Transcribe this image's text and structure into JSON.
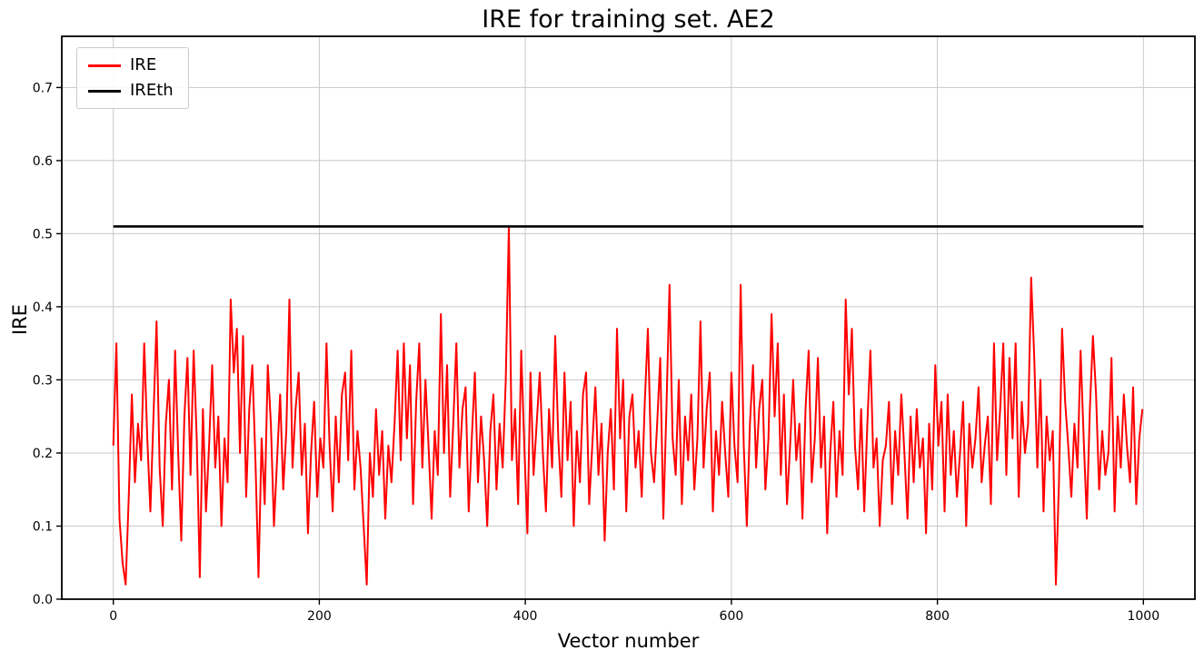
{
  "chart_data": {
    "type": "line",
    "title": "IRE for training set. AE2",
    "xlabel": "Vector number",
    "ylabel": "IRE",
    "xlim": [
      -50,
      1050
    ],
    "ylim": [
      0,
      0.77
    ],
    "x_ticks": [
      0,
      200,
      400,
      600,
      800,
      1000
    ],
    "y_ticks": [
      0.0,
      0.1,
      0.2,
      0.3,
      0.4,
      0.5,
      0.6,
      0.7
    ],
    "grid": true,
    "grid_color": "#c8c8c8",
    "legend_position": "upper left",
    "series": [
      {
        "name": "IRE",
        "color": "#ff0000",
        "kind": "line",
        "x_start": 0,
        "x_step": 3,
        "values": [
          0.21,
          0.35,
          0.11,
          0.05,
          0.02,
          0.14,
          0.28,
          0.16,
          0.24,
          0.19,
          0.35,
          0.22,
          0.12,
          0.25,
          0.38,
          0.18,
          0.1,
          0.24,
          0.3,
          0.15,
          0.34,
          0.2,
          0.08,
          0.25,
          0.33,
          0.17,
          0.34,
          0.22,
          0.03,
          0.26,
          0.12,
          0.21,
          0.32,
          0.18,
          0.25,
          0.1,
          0.22,
          0.16,
          0.41,
          0.31,
          0.37,
          0.2,
          0.36,
          0.14,
          0.26,
          0.32,
          0.19,
          0.03,
          0.22,
          0.13,
          0.32,
          0.24,
          0.1,
          0.19,
          0.28,
          0.15,
          0.23,
          0.41,
          0.18,
          0.26,
          0.31,
          0.17,
          0.24,
          0.09,
          0.2,
          0.27,
          0.14,
          0.22,
          0.18,
          0.35,
          0.21,
          0.12,
          0.25,
          0.16,
          0.28,
          0.31,
          0.19,
          0.34,
          0.15,
          0.23,
          0.18,
          0.1,
          0.02,
          0.2,
          0.14,
          0.26,
          0.17,
          0.23,
          0.11,
          0.21,
          0.16,
          0.24,
          0.34,
          0.19,
          0.35,
          0.22,
          0.32,
          0.13,
          0.27,
          0.35,
          0.18,
          0.3,
          0.21,
          0.11,
          0.23,
          0.17,
          0.39,
          0.2,
          0.32,
          0.14,
          0.24,
          0.35,
          0.18,
          0.26,
          0.29,
          0.12,
          0.22,
          0.31,
          0.16,
          0.25,
          0.19,
          0.1,
          0.23,
          0.28,
          0.15,
          0.24,
          0.18,
          0.3,
          0.51,
          0.19,
          0.26,
          0.13,
          0.34,
          0.21,
          0.09,
          0.31,
          0.17,
          0.24,
          0.31,
          0.2,
          0.12,
          0.26,
          0.18,
          0.36,
          0.22,
          0.14,
          0.31,
          0.19,
          0.27,
          0.1,
          0.23,
          0.16,
          0.28,
          0.31,
          0.13,
          0.21,
          0.29,
          0.17,
          0.24,
          0.08,
          0.2,
          0.26,
          0.15,
          0.37,
          0.22,
          0.3,
          0.12,
          0.25,
          0.28,
          0.18,
          0.23,
          0.14,
          0.27,
          0.37,
          0.2,
          0.16,
          0.24,
          0.33,
          0.11,
          0.26,
          0.43,
          0.22,
          0.17,
          0.3,
          0.13,
          0.25,
          0.19,
          0.28,
          0.15,
          0.22,
          0.38,
          0.18,
          0.26,
          0.31,
          0.12,
          0.23,
          0.17,
          0.27,
          0.2,
          0.14,
          0.31,
          0.21,
          0.16,
          0.43,
          0.21,
          0.1,
          0.24,
          0.32,
          0.18,
          0.26,
          0.3,
          0.15,
          0.22,
          0.39,
          0.25,
          0.35,
          0.17,
          0.28,
          0.13,
          0.21,
          0.3,
          0.19,
          0.24,
          0.11,
          0.26,
          0.34,
          0.16,
          0.22,
          0.33,
          0.18,
          0.25,
          0.09,
          0.2,
          0.27,
          0.14,
          0.23,
          0.17,
          0.41,
          0.28,
          0.37,
          0.21,
          0.15,
          0.26,
          0.12,
          0.24,
          0.34,
          0.18,
          0.22,
          0.1,
          0.19,
          0.21,
          0.27,
          0.13,
          0.23,
          0.17,
          0.28,
          0.2,
          0.11,
          0.25,
          0.16,
          0.26,
          0.18,
          0.22,
          0.09,
          0.24,
          0.15,
          0.32,
          0.21,
          0.27,
          0.12,
          0.28,
          0.17,
          0.23,
          0.14,
          0.2,
          0.27,
          0.1,
          0.24,
          0.18,
          0.22,
          0.29,
          0.16,
          0.21,
          0.25,
          0.13,
          0.35,
          0.19,
          0.26,
          0.35,
          0.17,
          0.33,
          0.22,
          0.35,
          0.14,
          0.27,
          0.2,
          0.24,
          0.44,
          0.33,
          0.18,
          0.3,
          0.12,
          0.25,
          0.19,
          0.23,
          0.02,
          0.16,
          0.37,
          0.27,
          0.21,
          0.14,
          0.24,
          0.18,
          0.34,
          0.22,
          0.11,
          0.26,
          0.36,
          0.28,
          0.15,
          0.23,
          0.17,
          0.2,
          0.33,
          0.12,
          0.25,
          0.18,
          0.28,
          0.21,
          0.16,
          0.29,
          0.13,
          0.22,
          0.26
        ]
      },
      {
        "name": "IREth",
        "color": "#000000",
        "kind": "hline",
        "value": 0.51,
        "x_range": [
          0,
          1000
        ]
      }
    ]
  }
}
